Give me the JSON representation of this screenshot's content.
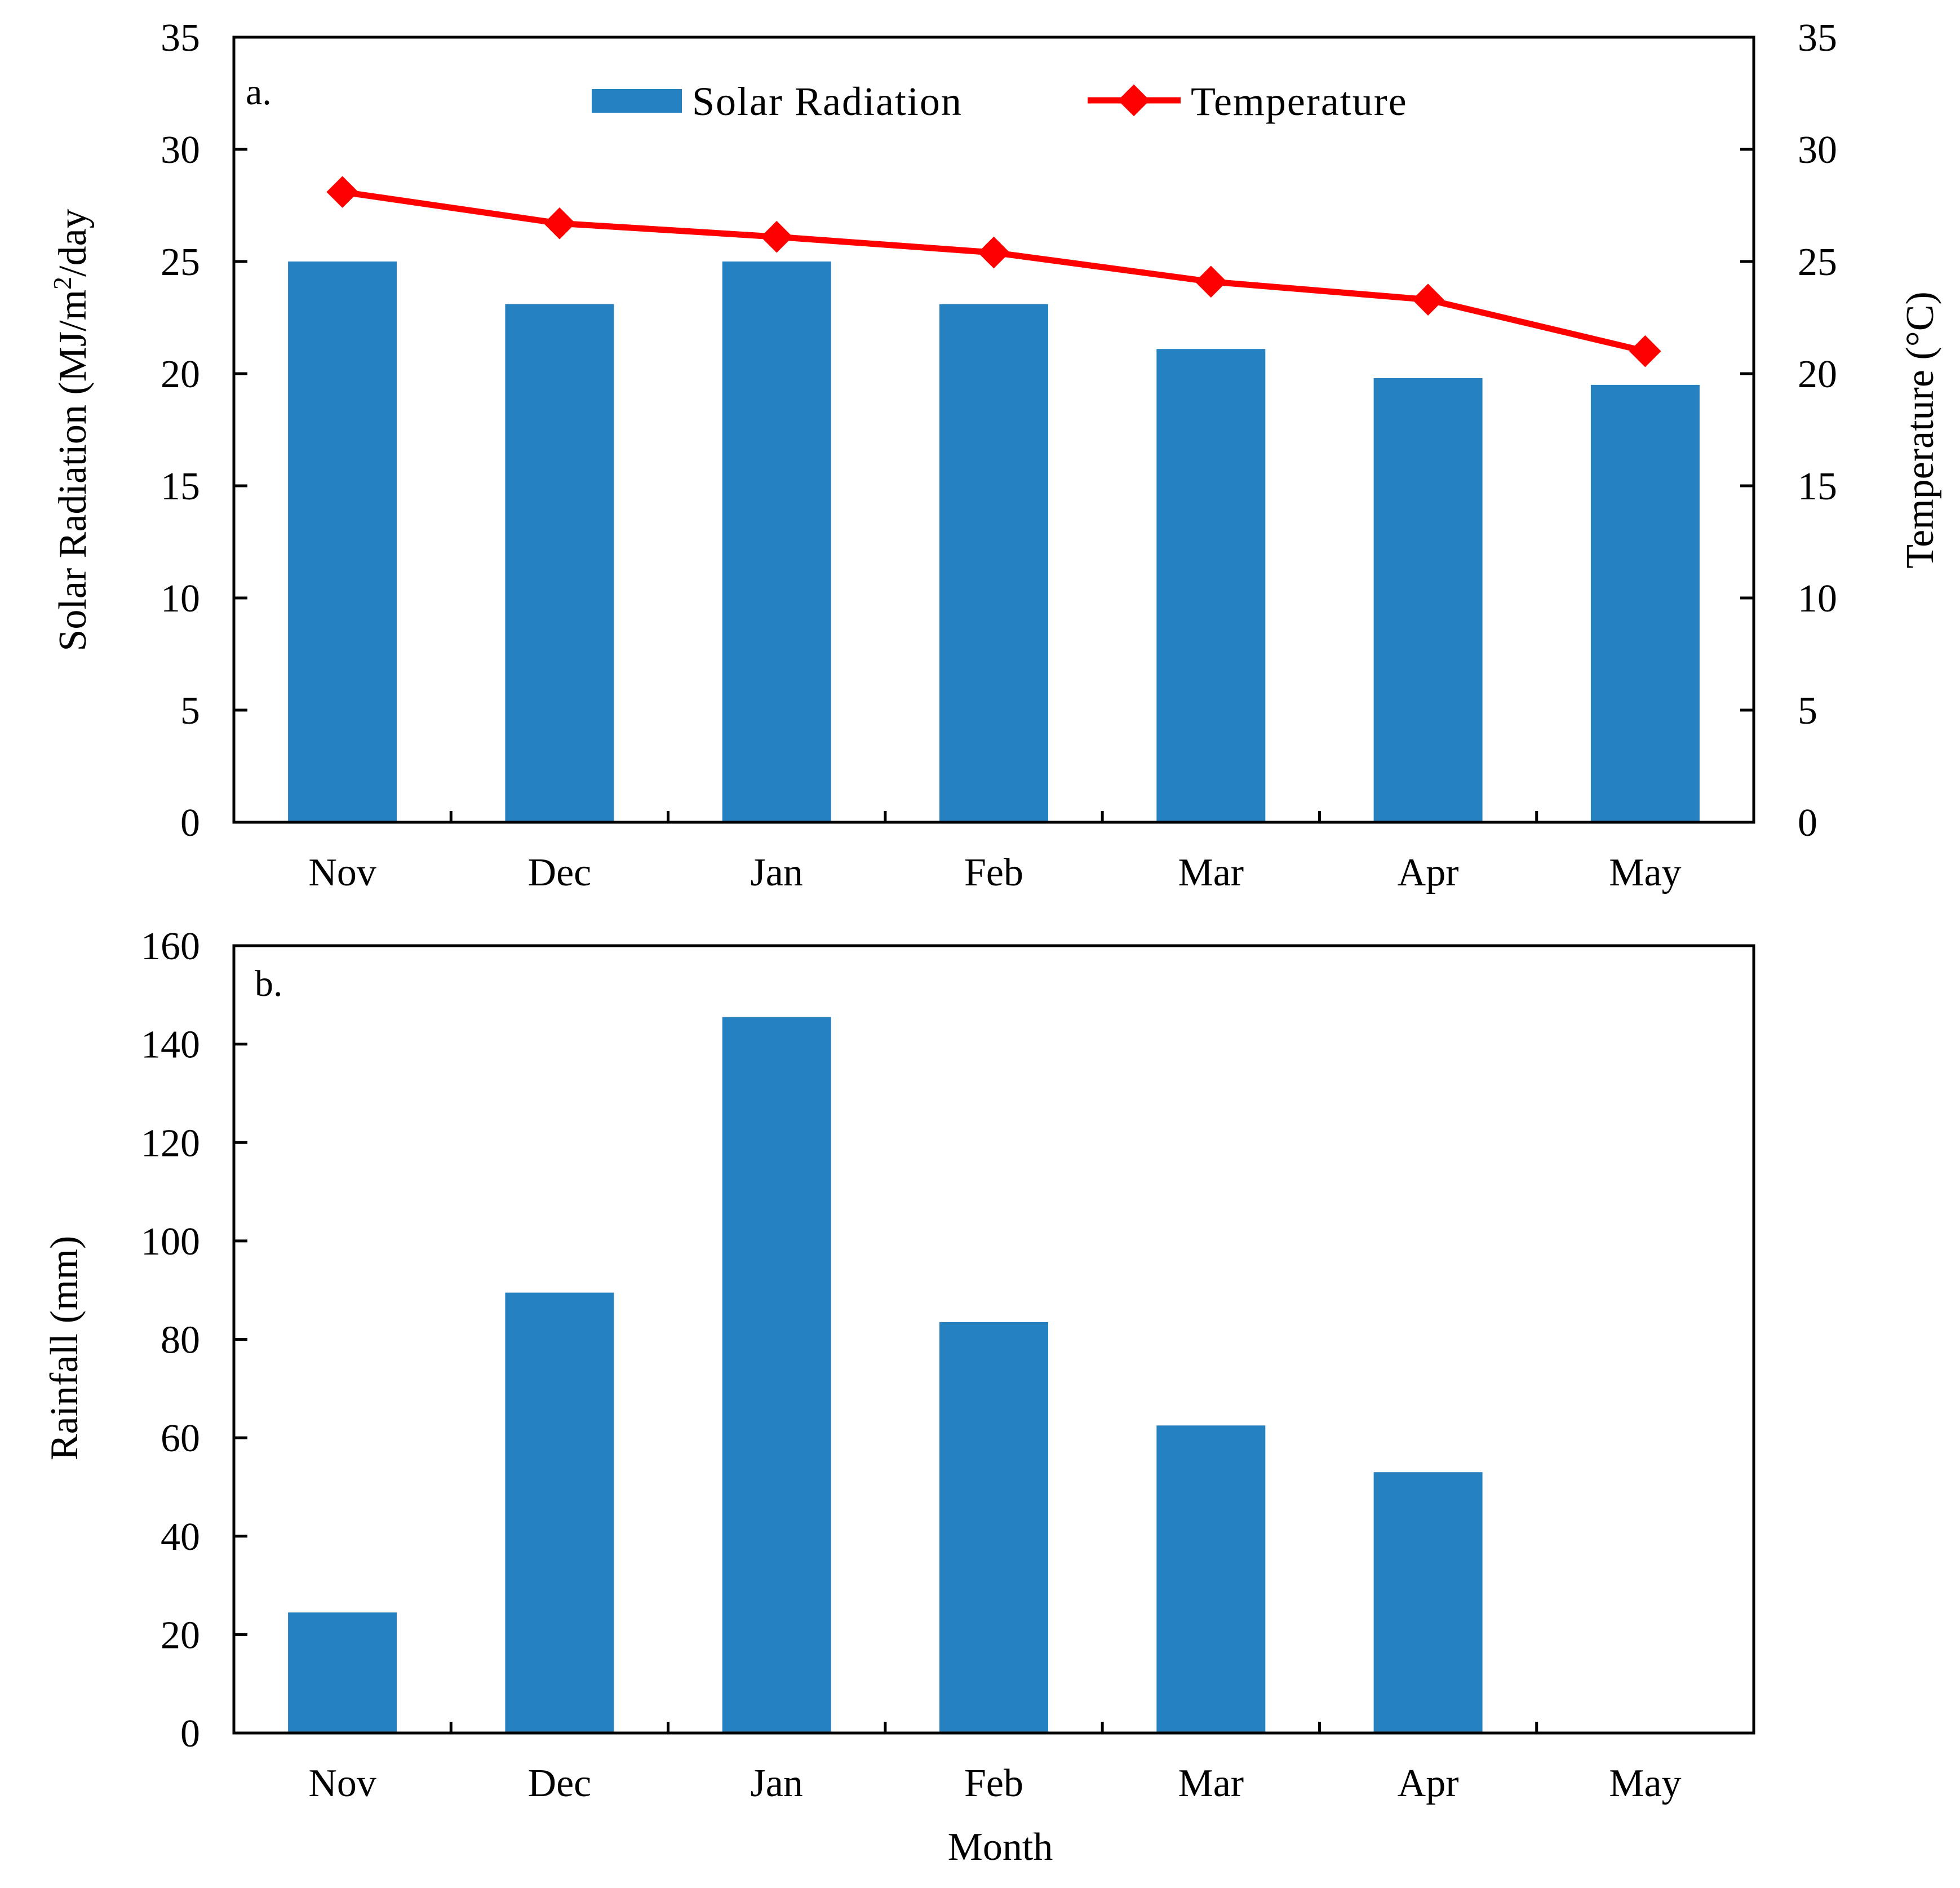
{
  "chart_data": [
    {
      "panel": "a.",
      "type": "bar+line",
      "categories": [
        "Nov",
        "Dec",
        "Jan",
        "Feb",
        "Mar",
        "Apr",
        "May"
      ],
      "series": [
        {
          "name": "Solar Radiation",
          "type": "bar",
          "axis": "left",
          "color": "#2681C1",
          "values": [
            25.0,
            23.1,
            25.0,
            23.1,
            21.1,
            19.8,
            19.5
          ]
        },
        {
          "name": "Temperature",
          "type": "line",
          "axis": "right",
          "color": "#FF0000",
          "marker": "diamond",
          "values": [
            28.1,
            26.7,
            26.1,
            25.4,
            24.1,
            23.3,
            21.0
          ]
        }
      ],
      "ylabel_left": {
        "pre": "Solar Radiation (MJ/m",
        "sup": "2",
        "post": "/day"
      },
      "ylabel_right": "Temperature (°C)",
      "xlabel": "",
      "ylim_left": [
        0,
        35
      ],
      "ylim_right": [
        0,
        35
      ],
      "yticks_left": [
        "0",
        "5",
        "10",
        "15",
        "20",
        "25",
        "30",
        "35"
      ],
      "yticks_right": [
        "0",
        "5",
        "10",
        "15",
        "20",
        "25",
        "30",
        "35"
      ],
      "legend": [
        "Solar Radiation",
        "Temperature"
      ],
      "legend_position": "top-center",
      "grid": false
    },
    {
      "panel": "b.",
      "type": "bar",
      "categories": [
        "Nov",
        "Dec",
        "Jan",
        "Feb",
        "Mar",
        "Apr",
        "May"
      ],
      "series": [
        {
          "name": "Rainfall",
          "type": "bar",
          "color": "#2681C1",
          "values": [
            24.5,
            89.5,
            145.5,
            83.5,
            62.5,
            53.0,
            0
          ]
        }
      ],
      "ylabel": "Rainfall (mm)",
      "xlabel": "Month",
      "ylim": [
        0,
        160
      ],
      "yticks": [
        "0",
        "20",
        "40",
        "60",
        "80",
        "100",
        "120",
        "140",
        "160"
      ],
      "grid": false
    }
  ]
}
